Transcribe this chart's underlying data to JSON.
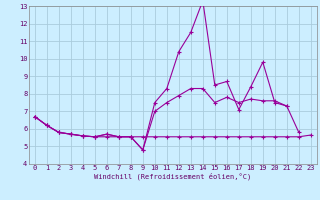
{
  "xlabel": "Windchill (Refroidissement éolien,°C)",
  "bg_color": "#cceeff",
  "grid_color": "#aaccdd",
  "line_color": "#990099",
  "xlim": [
    -0.5,
    23.5
  ],
  "ylim": [
    4,
    13
  ],
  "xticks": [
    0,
    1,
    2,
    3,
    4,
    5,
    6,
    7,
    8,
    9,
    10,
    11,
    12,
    13,
    14,
    15,
    16,
    17,
    18,
    19,
    20,
    21,
    22,
    23
  ],
  "yticks": [
    4,
    5,
    6,
    7,
    8,
    9,
    10,
    11,
    12,
    13
  ],
  "series": [
    {
      "x": [
        0,
        1,
        2,
        3,
        4,
        5,
        6,
        7,
        8,
        9,
        10,
        11,
        12,
        13,
        14,
        15,
        16,
        17,
        18,
        19,
        20,
        21,
        22,
        23
      ],
      "y": [
        6.7,
        6.2,
        5.8,
        5.7,
        5.6,
        5.55,
        5.55,
        5.55,
        5.55,
        5.55,
        5.55,
        5.55,
        5.55,
        5.55,
        5.55,
        5.55,
        5.55,
        5.55,
        5.55,
        5.55,
        5.55,
        5.55,
        5.55,
        5.65
      ]
    },
    {
      "x": [
        0,
        1,
        2,
        3,
        4,
        5,
        6,
        7,
        8,
        9,
        10,
        11,
        12,
        13,
        14,
        15,
        16,
        17,
        18,
        19,
        20,
        21,
        22
      ],
      "y": [
        6.7,
        6.2,
        5.8,
        5.7,
        5.6,
        5.55,
        5.7,
        5.55,
        5.55,
        4.8,
        7.5,
        8.3,
        10.4,
        11.5,
        13.3,
        8.5,
        8.7,
        7.1,
        8.4,
        9.8,
        7.5,
        7.3,
        5.8
      ]
    },
    {
      "x": [
        0,
        1,
        2,
        3,
        4,
        5,
        6,
        7,
        8,
        9,
        10,
        11,
        12,
        13,
        14,
        15,
        16,
        17,
        18,
        19,
        20,
        21
      ],
      "y": [
        6.7,
        6.2,
        5.8,
        5.7,
        5.6,
        5.55,
        5.7,
        5.55,
        5.55,
        4.8,
        7.0,
        7.5,
        7.9,
        8.3,
        8.3,
        7.5,
        7.8,
        7.5,
        7.7,
        7.6,
        7.6,
        7.3
      ]
    }
  ]
}
